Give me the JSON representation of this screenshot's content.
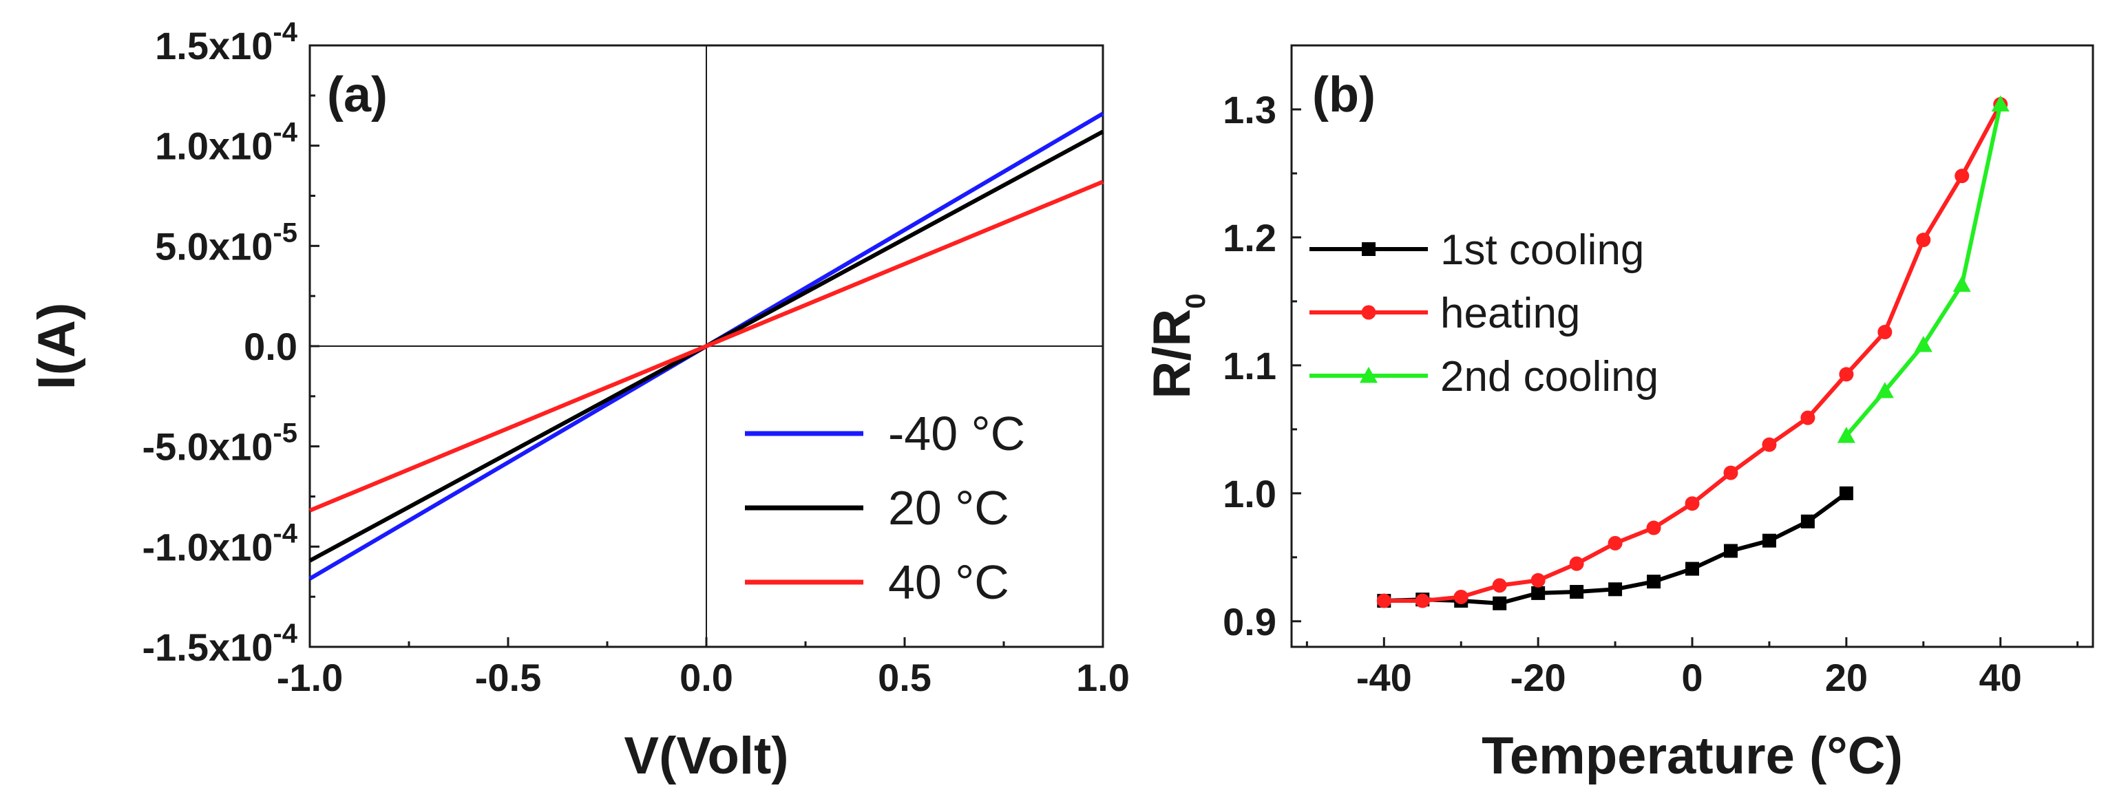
{
  "chart_data": [
    {
      "panel": "(a)",
      "type": "line",
      "xlabel": "V(Volt)",
      "ylabel": "I(A)",
      "xlim": [
        -1.0,
        1.0
      ],
      "ylim": [
        -0.00015,
        0.00015
      ],
      "x_ticks": [
        -1.0,
        -0.5,
        0.0,
        0.5,
        1.0
      ],
      "x_tick_labels": [
        "-1.0",
        "-0.5",
        "0.0",
        "0.5",
        "1.0"
      ],
      "y_ticks": [
        {
          "value": 0.00015,
          "mant": "1.5x10",
          "exp": "-4"
        },
        {
          "value": 0.0001,
          "mant": "1.0x10",
          "exp": "-4"
        },
        {
          "value": 5e-05,
          "mant": "5.0x10",
          "exp": "-5"
        },
        {
          "value": 0,
          "mant": "0.0",
          "exp": ""
        },
        {
          "value": -5e-05,
          "mant": "-5.0x10",
          "exp": "-5"
        },
        {
          "value": -0.0001,
          "mant": "-1.0x10",
          "exp": "-4"
        },
        {
          "value": -0.00015,
          "mant": "-1.5x10",
          "exp": "-4"
        }
      ],
      "zero_lines": true,
      "legend_position": "bottom-right",
      "series": [
        {
          "name": "-40 °C",
          "color": "#1a1aff",
          "x": [
            -1.0,
            1.0
          ],
          "y": [
            -0.000116,
            0.000116
          ]
        },
        {
          "name": " 20 °C",
          "color": "#000000",
          "x": [
            -1.0,
            1.0
          ],
          "y": [
            -0.000107,
            0.000107
          ]
        },
        {
          "name": " 40 °C",
          "color": "#ff2020",
          "x": [
            -1.0,
            1.0
          ],
          "y": [
            -8.2e-05,
            8.2e-05
          ]
        }
      ]
    },
    {
      "panel": "(b)",
      "type": "line",
      "xlabel": "Temperature (°C)",
      "ylabel_main": "R/R",
      "ylabel_sub": "0",
      "xlim": [
        -52,
        52
      ],
      "ylim": [
        0.88,
        1.35
      ],
      "x_ticks": [
        -40,
        -20,
        0,
        20,
        40
      ],
      "x_tick_labels": [
        "-40",
        "-20",
        "0",
        "20",
        "40"
      ],
      "x_minor_ticks": [
        -50,
        -30,
        -10,
        10,
        30,
        50
      ],
      "y_ticks": [
        0.9,
        1.0,
        1.1,
        1.2,
        1.3
      ],
      "y_tick_labels": [
        "0.9",
        "1.0",
        "1.1",
        "1.2",
        "1.3"
      ],
      "legend_position": "left",
      "series": [
        {
          "name": "1st cooling",
          "color": "#000000",
          "marker": "square",
          "x": [
            20,
            15,
            10,
            5,
            0,
            -5,
            -10,
            -15,
            -20,
            -25,
            -30,
            -35,
            -40
          ],
          "y": [
            1.0,
            0.978,
            0.963,
            0.955,
            0.941,
            0.931,
            0.925,
            0.923,
            0.922,
            0.914,
            0.916,
            0.917,
            0.916
          ]
        },
        {
          "name": "heating",
          "color": "#ff2020",
          "marker": "circle",
          "x": [
            -40,
            -35,
            -30,
            -25,
            -20,
            -15,
            -10,
            -5,
            0,
            5,
            10,
            15,
            20,
            25,
            30,
            35,
            40
          ],
          "y": [
            0.916,
            0.916,
            0.919,
            0.928,
            0.932,
            0.945,
            0.961,
            0.973,
            0.992,
            1.016,
            1.038,
            1.059,
            1.093,
            1.126,
            1.198,
            1.248,
            1.304
          ]
        },
        {
          "name": "2nd cooling",
          "color": "#22ee22",
          "marker": "triangle",
          "x": [
            40,
            35,
            30,
            25,
            20
          ],
          "y": [
            1.304,
            1.163,
            1.116,
            1.08,
            1.045
          ]
        }
      ]
    }
  ]
}
